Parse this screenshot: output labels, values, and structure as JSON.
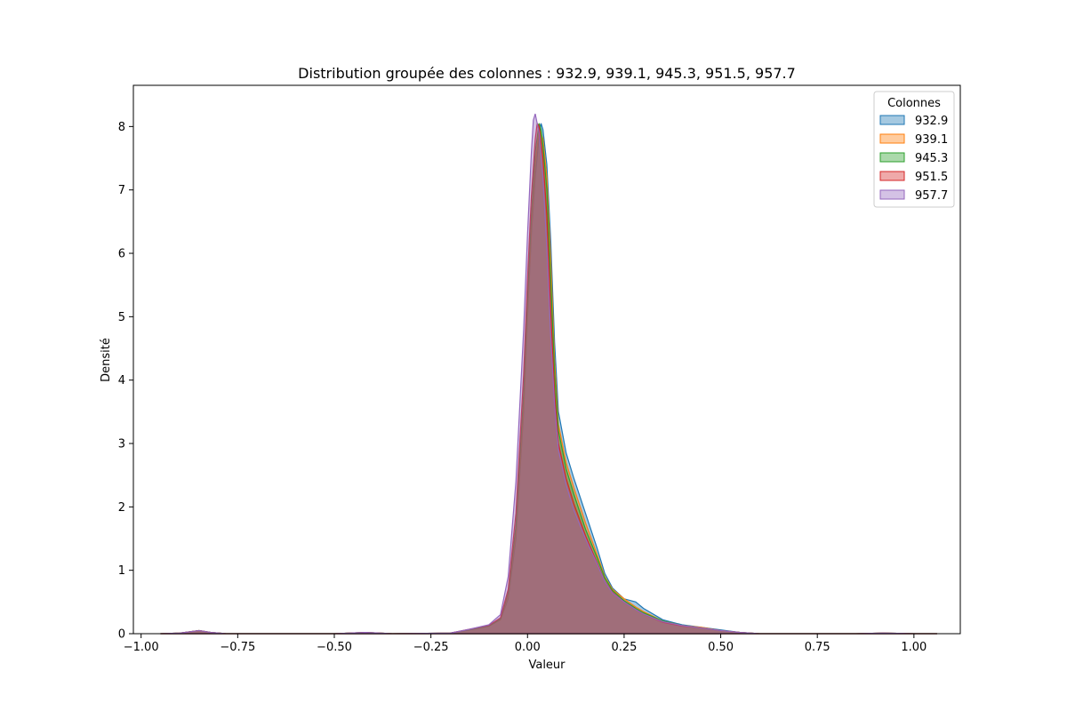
{
  "chart_data": {
    "type": "area",
    "title": "Distribution groupée des colonnes : 932.9, 939.1, 945.3, 951.5, 957.7",
    "xlabel": "Valeur",
    "ylabel": "Densité",
    "xlim": [
      -1.02,
      1.12
    ],
    "ylim": [
      0,
      8.65
    ],
    "x_ticks": [
      -1.0,
      -0.75,
      -0.5,
      -0.25,
      0.0,
      0.25,
      0.5,
      0.75,
      1.0
    ],
    "x_tick_labels": [
      "−1.00",
      "−0.75",
      "−0.50",
      "−0.25",
      "0.00",
      "0.25",
      "0.50",
      "0.75",
      "1.00"
    ],
    "y_ticks": [
      0,
      1,
      2,
      3,
      4,
      5,
      6,
      7,
      8
    ],
    "y_tick_labels": [
      "0",
      "1",
      "2",
      "3",
      "4",
      "5",
      "6",
      "7",
      "8"
    ],
    "grid": false,
    "legend": {
      "title": "Colonnes",
      "placement": "top-right"
    },
    "series": [
      {
        "name": "932.9",
        "color": "#1f77b4",
        "points": [
          [
            -0.95,
            0.0
          ],
          [
            -0.9,
            0.01
          ],
          [
            -0.85,
            0.05
          ],
          [
            -0.82,
            0.02
          ],
          [
            -0.78,
            0.0
          ],
          [
            -0.5,
            0.0
          ],
          [
            -0.42,
            0.02
          ],
          [
            -0.35,
            0.0
          ],
          [
            -0.2,
            0.01
          ],
          [
            -0.15,
            0.06
          ],
          [
            -0.1,
            0.12
          ],
          [
            -0.07,
            0.22
          ],
          [
            -0.05,
            0.55
          ],
          [
            -0.03,
            1.5
          ],
          [
            -0.01,
            3.5
          ],
          [
            0.0,
            5.0
          ],
          [
            0.01,
            6.3
          ],
          [
            0.02,
            7.2
          ],
          [
            0.03,
            7.85
          ],
          [
            0.035,
            8.05
          ],
          [
            0.04,
            7.95
          ],
          [
            0.05,
            7.4
          ],
          [
            0.06,
            6.2
          ],
          [
            0.07,
            4.6
          ],
          [
            0.08,
            3.5
          ],
          [
            0.1,
            2.85
          ],
          [
            0.12,
            2.45
          ],
          [
            0.15,
            1.9
          ],
          [
            0.18,
            1.35
          ],
          [
            0.2,
            0.95
          ],
          [
            0.22,
            0.72
          ],
          [
            0.25,
            0.55
          ],
          [
            0.28,
            0.5
          ],
          [
            0.3,
            0.4
          ],
          [
            0.35,
            0.22
          ],
          [
            0.4,
            0.14
          ],
          [
            0.45,
            0.1
          ],
          [
            0.5,
            0.06
          ],
          [
            0.55,
            0.02
          ],
          [
            0.6,
            0.0
          ],
          [
            0.85,
            0.0
          ],
          [
            0.92,
            0.01
          ],
          [
            1.0,
            0.0
          ],
          [
            1.06,
            0.0
          ]
        ]
      },
      {
        "name": "939.1",
        "color": "#ff7f0e",
        "points": [
          [
            -0.95,
            0.0
          ],
          [
            -0.9,
            0.01
          ],
          [
            -0.85,
            0.05
          ],
          [
            -0.82,
            0.02
          ],
          [
            -0.78,
            0.0
          ],
          [
            -0.5,
            0.0
          ],
          [
            -0.42,
            0.02
          ],
          [
            -0.35,
            0.0
          ],
          [
            -0.2,
            0.01
          ],
          [
            -0.15,
            0.06
          ],
          [
            -0.1,
            0.12
          ],
          [
            -0.07,
            0.22
          ],
          [
            -0.05,
            0.6
          ],
          [
            -0.03,
            1.6
          ],
          [
            -0.01,
            3.6
          ],
          [
            0.0,
            5.1
          ],
          [
            0.01,
            6.4
          ],
          [
            0.02,
            7.4
          ],
          [
            0.03,
            7.95
          ],
          [
            0.035,
            7.9
          ],
          [
            0.04,
            7.8
          ],
          [
            0.05,
            7.2
          ],
          [
            0.06,
            5.9
          ],
          [
            0.07,
            4.3
          ],
          [
            0.08,
            3.3
          ],
          [
            0.1,
            2.7
          ],
          [
            0.12,
            2.3
          ],
          [
            0.15,
            1.75
          ],
          [
            0.18,
            1.25
          ],
          [
            0.2,
            0.9
          ],
          [
            0.22,
            0.7
          ],
          [
            0.25,
            0.55
          ],
          [
            0.28,
            0.42
          ],
          [
            0.3,
            0.35
          ],
          [
            0.35,
            0.2
          ],
          [
            0.4,
            0.13
          ],
          [
            0.45,
            0.1
          ],
          [
            0.5,
            0.05
          ],
          [
            0.55,
            0.02
          ],
          [
            0.6,
            0.0
          ],
          [
            0.85,
            0.0
          ],
          [
            0.92,
            0.01
          ],
          [
            1.0,
            0.0
          ],
          [
            1.06,
            0.0
          ]
        ]
      },
      {
        "name": "945.3",
        "color": "#2ca02c",
        "points": [
          [
            -0.95,
            0.0
          ],
          [
            -0.9,
            0.01
          ],
          [
            -0.85,
            0.05
          ],
          [
            -0.82,
            0.02
          ],
          [
            -0.78,
            0.0
          ],
          [
            -0.5,
            0.0
          ],
          [
            -0.42,
            0.02
          ],
          [
            -0.35,
            0.0
          ],
          [
            -0.2,
            0.01
          ],
          [
            -0.15,
            0.06
          ],
          [
            -0.1,
            0.12
          ],
          [
            -0.07,
            0.23
          ],
          [
            -0.05,
            0.65
          ],
          [
            -0.03,
            1.7
          ],
          [
            -0.01,
            3.8
          ],
          [
            0.0,
            5.3
          ],
          [
            0.01,
            6.6
          ],
          [
            0.02,
            7.6
          ],
          [
            0.03,
            8.05
          ],
          [
            0.035,
            7.95
          ],
          [
            0.04,
            7.7
          ],
          [
            0.05,
            7.0
          ],
          [
            0.06,
            5.6
          ],
          [
            0.07,
            4.1
          ],
          [
            0.08,
            3.2
          ],
          [
            0.1,
            2.6
          ],
          [
            0.12,
            2.2
          ],
          [
            0.15,
            1.65
          ],
          [
            0.18,
            1.2
          ],
          [
            0.2,
            0.88
          ],
          [
            0.22,
            0.68
          ],
          [
            0.25,
            0.52
          ],
          [
            0.28,
            0.4
          ],
          [
            0.3,
            0.33
          ],
          [
            0.35,
            0.2
          ],
          [
            0.4,
            0.13
          ],
          [
            0.45,
            0.09
          ],
          [
            0.5,
            0.05
          ],
          [
            0.55,
            0.02
          ],
          [
            0.6,
            0.0
          ],
          [
            0.85,
            0.0
          ],
          [
            0.92,
            0.01
          ],
          [
            1.0,
            0.0
          ],
          [
            1.06,
            0.0
          ]
        ]
      },
      {
        "name": "951.5",
        "color": "#d62728",
        "points": [
          [
            -0.95,
            0.0
          ],
          [
            -0.9,
            0.01
          ],
          [
            -0.85,
            0.05
          ],
          [
            -0.82,
            0.02
          ],
          [
            -0.78,
            0.0
          ],
          [
            -0.5,
            0.0
          ],
          [
            -0.42,
            0.02
          ],
          [
            -0.35,
            0.0
          ],
          [
            -0.2,
            0.01
          ],
          [
            -0.15,
            0.07
          ],
          [
            -0.1,
            0.13
          ],
          [
            -0.07,
            0.25
          ],
          [
            -0.05,
            0.7
          ],
          [
            -0.03,
            1.9
          ],
          [
            -0.01,
            4.1
          ],
          [
            0.0,
            5.6
          ],
          [
            0.01,
            6.9
          ],
          [
            0.02,
            7.8
          ],
          [
            0.025,
            8.05
          ],
          [
            0.03,
            8.0
          ],
          [
            0.04,
            7.5
          ],
          [
            0.05,
            6.6
          ],
          [
            0.06,
            5.1
          ],
          [
            0.07,
            3.8
          ],
          [
            0.08,
            3.0
          ],
          [
            0.1,
            2.45
          ],
          [
            0.12,
            2.05
          ],
          [
            0.15,
            1.55
          ],
          [
            0.18,
            1.12
          ],
          [
            0.2,
            0.83
          ],
          [
            0.22,
            0.65
          ],
          [
            0.25,
            0.5
          ],
          [
            0.28,
            0.38
          ],
          [
            0.3,
            0.31
          ],
          [
            0.35,
            0.18
          ],
          [
            0.4,
            0.12
          ],
          [
            0.45,
            0.09
          ],
          [
            0.5,
            0.05
          ],
          [
            0.55,
            0.02
          ],
          [
            0.6,
            0.0
          ],
          [
            0.85,
            0.0
          ],
          [
            0.92,
            0.01
          ],
          [
            1.0,
            0.0
          ],
          [
            1.06,
            0.0
          ]
        ]
      },
      {
        "name": "957.7",
        "color": "#9467bd",
        "points": [
          [
            -0.95,
            0.0
          ],
          [
            -0.9,
            0.01
          ],
          [
            -0.85,
            0.05
          ],
          [
            -0.82,
            0.02
          ],
          [
            -0.78,
            0.0
          ],
          [
            -0.5,
            0.0
          ],
          [
            -0.42,
            0.02
          ],
          [
            -0.35,
            0.0
          ],
          [
            -0.2,
            0.01
          ],
          [
            -0.15,
            0.07
          ],
          [
            -0.1,
            0.14
          ],
          [
            -0.07,
            0.3
          ],
          [
            -0.05,
            0.9
          ],
          [
            -0.03,
            2.4
          ],
          [
            -0.01,
            4.8
          ],
          [
            0.0,
            6.3
          ],
          [
            0.01,
            7.6
          ],
          [
            0.015,
            8.1
          ],
          [
            0.02,
            8.2
          ],
          [
            0.03,
            7.9
          ],
          [
            0.04,
            7.2
          ],
          [
            0.05,
            6.1
          ],
          [
            0.06,
            4.7
          ],
          [
            0.07,
            3.6
          ],
          [
            0.08,
            2.9
          ],
          [
            0.1,
            2.35
          ],
          [
            0.12,
            1.95
          ],
          [
            0.15,
            1.5
          ],
          [
            0.18,
            1.1
          ],
          [
            0.2,
            0.82
          ],
          [
            0.22,
            0.64
          ],
          [
            0.25,
            0.5
          ],
          [
            0.28,
            0.38
          ],
          [
            0.3,
            0.31
          ],
          [
            0.35,
            0.19
          ],
          [
            0.4,
            0.13
          ],
          [
            0.45,
            0.09
          ],
          [
            0.5,
            0.05
          ],
          [
            0.55,
            0.02
          ],
          [
            0.6,
            0.0
          ],
          [
            0.85,
            0.0
          ],
          [
            0.92,
            0.01
          ],
          [
            1.0,
            0.0
          ],
          [
            1.06,
            0.0
          ]
        ]
      }
    ]
  }
}
